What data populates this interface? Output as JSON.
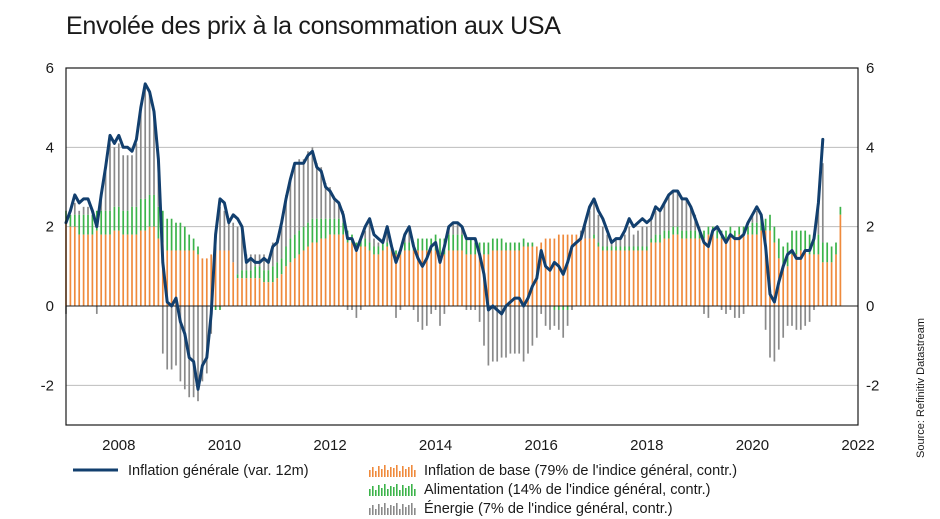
{
  "chart_data": {
    "type": "bar",
    "title": "Envolée des prix à la consommation aux USA",
    "source": "Source: Refinitiv Datastream",
    "x_ticks": [
      "2008",
      "2010",
      "2012",
      "2014",
      "2016",
      "2018",
      "2020",
      "2022"
    ],
    "x_range": [
      2007.0,
      2022.0
    ],
    "ylim": [
      -3,
      6
    ],
    "y_ticks": [
      "6",
      "4",
      "2",
      "0",
      "-2"
    ],
    "y_ticks_right": [
      "6",
      "4",
      "2",
      "0",
      "-2"
    ],
    "grid": true,
    "start": "2007-01",
    "series": [
      {
        "name": "Inflation générale (var. 12m)",
        "type": "line",
        "color": "#123f6e",
        "values": [
          2.1,
          2.4,
          2.8,
          2.6,
          2.7,
          2.7,
          2.4,
          2.0,
          2.8,
          3.5,
          4.3,
          4.1,
          4.3,
          4.0,
          4.0,
          3.9,
          4.2,
          5.0,
          5.6,
          5.4,
          4.9,
          3.7,
          1.1,
          0.1,
          0.0,
          0.2,
          -0.4,
          -0.7,
          -1.3,
          -1.4,
          -2.1,
          -1.5,
          -1.3,
          -0.2,
          1.8,
          2.7,
          2.6,
          2.1,
          2.3,
          2.2,
          2.0,
          1.1,
          1.2,
          1.1,
          1.1,
          1.2,
          1.1,
          1.5,
          1.6,
          2.1,
          2.7,
          3.2,
          3.6,
          3.6,
          3.6,
          3.8,
          3.9,
          3.5,
          3.4,
          3.0,
          2.9,
          2.7,
          2.6,
          2.3,
          1.7,
          1.7,
          1.4,
          1.7,
          2.0,
          2.2,
          1.8,
          1.7,
          1.6,
          2.0,
          1.5,
          1.1,
          1.4,
          1.8,
          2.0,
          1.5,
          1.2,
          1.0,
          1.2,
          1.5,
          1.6,
          1.1,
          1.5,
          2.0,
          2.1,
          2.1,
          2.0,
          1.7,
          1.7,
          1.7,
          1.3,
          0.8,
          -0.1,
          0.0,
          -0.1,
          -0.2,
          0.0,
          0.1,
          0.2,
          0.2,
          0.0,
          0.2,
          0.5,
          0.7,
          1.4,
          1.0,
          0.9,
          1.1,
          1.0,
          0.8,
          1.1,
          1.5,
          1.6,
          1.7,
          2.1,
          2.5,
          2.7,
          2.4,
          2.2,
          1.9,
          1.6,
          1.7,
          1.7,
          1.9,
          2.2,
          2.0,
          2.1,
          2.2,
          2.1,
          2.2,
          2.5,
          2.4,
          2.6,
          2.8,
          2.9,
          2.9,
          2.7,
          2.7,
          2.5,
          2.2,
          1.9,
          1.6,
          1.5,
          1.9,
          2.0,
          1.8,
          1.6,
          1.8,
          1.7,
          1.7,
          1.8,
          2.1,
          2.3,
          2.5,
          2.3,
          1.5,
          0.3,
          0.1,
          0.6,
          1.0,
          1.3,
          1.4,
          1.2,
          1.2,
          1.4,
          1.4,
          1.7,
          2.6,
          4.2
        ]
      },
      {
        "name": "Inflation de base (79% de l'indice général, contr.)",
        "type": "bar",
        "color": "#ef8a3c",
        "values": [
          2.1,
          2.0,
          2.0,
          1.8,
          1.8,
          1.8,
          1.8,
          1.9,
          1.8,
          1.8,
          1.8,
          1.9,
          1.9,
          1.8,
          1.8,
          1.8,
          1.8,
          1.9,
          1.9,
          2.0,
          2.0,
          1.7,
          1.6,
          1.4,
          1.4,
          1.4,
          1.4,
          1.4,
          1.4,
          1.4,
          1.3,
          1.2,
          1.2,
          1.3,
          1.4,
          1.4,
          1.4,
          1.4,
          1.1,
          0.7,
          0.7,
          0.7,
          0.7,
          0.7,
          0.7,
          0.6,
          0.6,
          0.6,
          0.7,
          0.8,
          1.0,
          1.1,
          1.2,
          1.3,
          1.4,
          1.5,
          1.6,
          1.6,
          1.7,
          1.7,
          1.8,
          1.8,
          1.8,
          1.8,
          1.6,
          1.6,
          1.4,
          1.5,
          1.5,
          1.4,
          1.3,
          1.3,
          1.4,
          1.5,
          1.4,
          1.3,
          1.3,
          1.4,
          1.4,
          1.4,
          1.4,
          1.4,
          1.4,
          1.4,
          1.4,
          1.3,
          1.3,
          1.4,
          1.4,
          1.4,
          1.4,
          1.3,
          1.3,
          1.3,
          1.3,
          1.3,
          1.3,
          1.4,
          1.4,
          1.4,
          1.4,
          1.4,
          1.4,
          1.4,
          1.5,
          1.5,
          1.5,
          1.5,
          1.6,
          1.7,
          1.7,
          1.7,
          1.8,
          1.8,
          1.8,
          1.8,
          1.8,
          1.8,
          1.7,
          1.7,
          1.7,
          1.5,
          1.4,
          1.4,
          1.4,
          1.4,
          1.4,
          1.4,
          1.4,
          1.4,
          1.4,
          1.4,
          1.4,
          1.6,
          1.6,
          1.6,
          1.7,
          1.7,
          1.8,
          1.8,
          1.7,
          1.7,
          1.7,
          1.7,
          1.7,
          1.7,
          1.8,
          1.8,
          1.7,
          1.7,
          1.7,
          1.8,
          1.7,
          1.8,
          1.8,
          1.8,
          1.8,
          1.8,
          1.9,
          1.9,
          1.9,
          1.6,
          1.2,
          1.0,
          1.0,
          1.3,
          1.3,
          1.4,
          1.4,
          1.3,
          1.3,
          1.3,
          1.1,
          1.1,
          1.1,
          1.3,
          2.3
        ]
      },
      {
        "name": "Alimentation (14% de l'indice général, contr.)",
        "type": "bar",
        "color": "#3cb34a",
        "values": [
          0.3,
          0.3,
          0.3,
          0.5,
          0.5,
          0.5,
          0.5,
          0.5,
          0.6,
          0.6,
          0.6,
          0.6,
          0.6,
          0.6,
          0.6,
          0.7,
          0.7,
          0.8,
          0.8,
          0.8,
          0.8,
          0.8,
          0.8,
          0.8,
          0.8,
          0.7,
          0.7,
          0.6,
          0.4,
          0.3,
          0.2,
          0.0,
          0.0,
          -0.1,
          -0.1,
          -0.1,
          0.0,
          0.0,
          0.0,
          0.1,
          0.2,
          0.2,
          0.2,
          0.3,
          0.3,
          0.3,
          0.3,
          0.4,
          0.4,
          0.4,
          0.5,
          0.6,
          0.6,
          0.6,
          0.6,
          0.6,
          0.6,
          0.6,
          0.5,
          0.5,
          0.4,
          0.4,
          0.4,
          0.3,
          0.3,
          0.2,
          0.2,
          0.2,
          0.2,
          0.2,
          0.2,
          0.2,
          0.2,
          0.1,
          0.1,
          0.1,
          0.1,
          0.2,
          0.2,
          0.2,
          0.3,
          0.3,
          0.3,
          0.3,
          0.4,
          0.4,
          0.4,
          0.4,
          0.4,
          0.4,
          0.4,
          0.4,
          0.4,
          0.3,
          0.3,
          0.3,
          0.3,
          0.3,
          0.3,
          0.3,
          0.2,
          0.2,
          0.2,
          0.2,
          0.2,
          0.1,
          0.1,
          0.0,
          0.0,
          0.0,
          0.0,
          -0.1,
          -0.1,
          -0.1,
          -0.1,
          0.0,
          0.0,
          0.0,
          0.0,
          0.0,
          0.1,
          0.1,
          0.1,
          0.1,
          0.1,
          0.1,
          0.1,
          0.1,
          0.1,
          0.1,
          0.1,
          0.1,
          0.1,
          0.1,
          0.2,
          0.2,
          0.2,
          0.2,
          0.2,
          0.2,
          0.2,
          0.2,
          0.2,
          0.2,
          0.2,
          0.2,
          0.2,
          0.2,
          0.2,
          0.2,
          0.2,
          0.2,
          0.2,
          0.2,
          0.2,
          0.2,
          0.3,
          0.3,
          0.3,
          0.3,
          0.4,
          0.4,
          0.5,
          0.5,
          0.6,
          0.6,
          0.6,
          0.5,
          0.5,
          0.5,
          0.5,
          0.5,
          0.5,
          0.5,
          0.4,
          0.3,
          0.2
        ]
      },
      {
        "name": "Énergie (7% de l'indice général, contr.)",
        "type": "bar",
        "color": "#8a8a8a",
        "values": [
          -0.2,
          0.0,
          0.3,
          0.1,
          0.2,
          0.2,
          0.0,
          -0.2,
          0.3,
          1.0,
          1.7,
          1.5,
          1.6,
          1.4,
          1.4,
          1.3,
          1.6,
          2.2,
          2.9,
          2.6,
          2.1,
          1.1,
          -1.2,
          -1.6,
          -1.6,
          -1.5,
          -1.9,
          -2.1,
          -2.3,
          -2.3,
          -2.4,
          -1.9,
          -1.7,
          -0.6,
          0.5,
          1.1,
          1.0,
          0.8,
          1.0,
          1.2,
          1.1,
          0.4,
          0.4,
          0.3,
          0.3,
          0.4,
          0.3,
          0.6,
          0.6,
          0.9,
          1.3,
          1.5,
          1.8,
          1.8,
          1.7,
          1.8,
          1.8,
          1.4,
          1.3,
          0.9,
          0.8,
          0.5,
          0.4,
          0.3,
          -0.1,
          -0.1,
          -0.3,
          -0.1,
          0.2,
          0.5,
          0.2,
          0.1,
          0.1,
          0.3,
          0.0,
          -0.3,
          -0.1,
          0.2,
          0.3,
          -0.1,
          -0.4,
          -0.6,
          -0.5,
          -0.2,
          -0.1,
          -0.5,
          -0.2,
          0.2,
          0.3,
          0.3,
          0.2,
          -0.1,
          -0.1,
          -0.1,
          -0.4,
          -1.0,
          -1.5,
          -1.4,
          -1.4,
          -1.3,
          -1.3,
          -1.2,
          -1.2,
          -1.2,
          -1.4,
          -1.2,
          -1.0,
          -0.8,
          -0.2,
          -0.5,
          -0.6,
          -0.4,
          -0.5,
          -0.7,
          -0.4,
          -0.1,
          0.0,
          0.1,
          0.4,
          0.7,
          0.9,
          0.7,
          0.5,
          0.3,
          0.1,
          0.2,
          0.2,
          0.3,
          0.5,
          0.3,
          0.4,
          0.5,
          0.5,
          0.5,
          0.6,
          0.6,
          0.7,
          0.9,
          0.9,
          0.9,
          0.8,
          0.8,
          0.6,
          0.4,
          0.1,
          -0.2,
          -0.3,
          0.0,
          0.1,
          -0.1,
          -0.2,
          -0.1,
          -0.3,
          -0.3,
          -0.2,
          0.0,
          0.2,
          0.3,
          0.1,
          -0.6,
          -1.3,
          -1.4,
          -1.1,
          -0.8,
          -0.5,
          -0.5,
          -0.6,
          -0.6,
          -0.5,
          -0.4,
          -0.1,
          0.8,
          2.0
        ]
      }
    ]
  }
}
